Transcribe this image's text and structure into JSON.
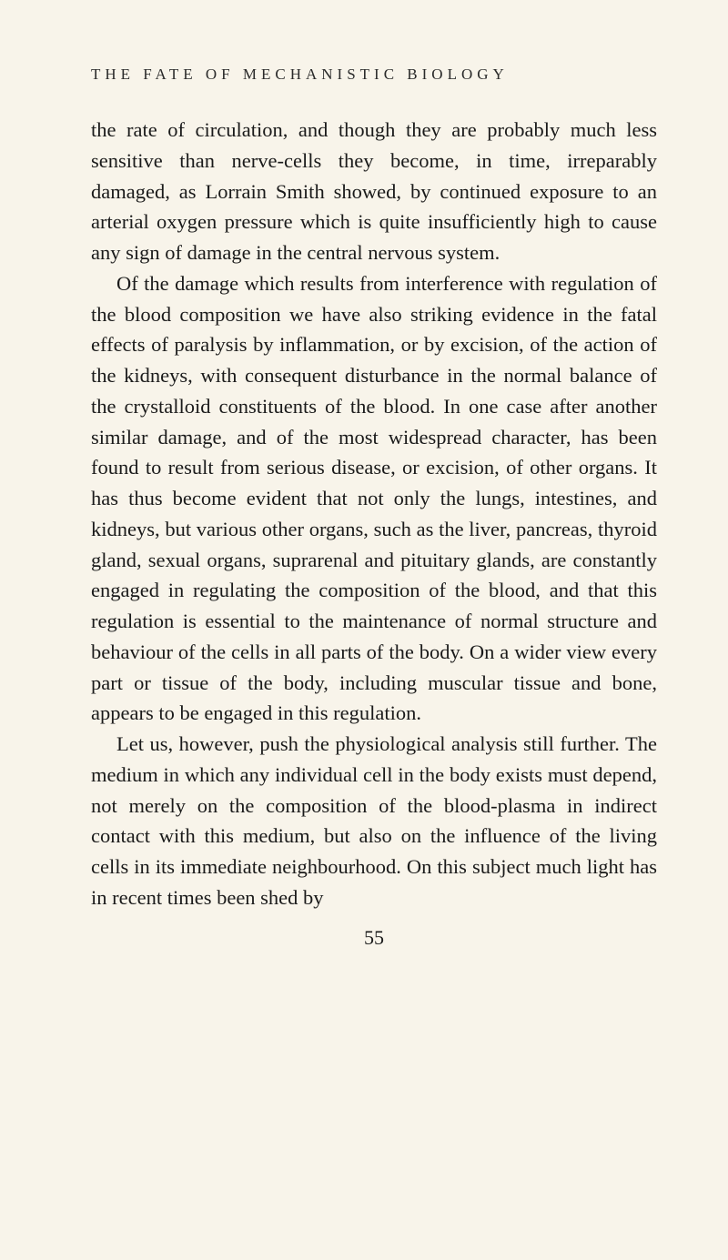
{
  "header": "THE FATE OF MECHANISTIC BIOLOGY",
  "paragraphs": [
    {
      "text": "the rate of circulation, and though they are probably much less sensitive than nerve-cells they become, in time, irreparably damaged, as Lorrain Smith showed, by continued exposure to an arterial oxygen pressure which is quite insufficiently high to cause any sign of damage in the central nervous system.",
      "indent": false
    },
    {
      "text": "Of the damage which results from interference with regulation of the blood composition we have also striking evidence in the fatal effects of paralysis by inflammation, or by excision, of the action of the kidneys, with consequent disturbance in the normal balance of the crystalloid constituents of the blood. In one case after another similar damage, and of the most widespread character, has been found to result from serious disease, or excision, of other organs. It has thus become evident that not only the lungs, intestines, and kidneys, but various other organs, such as the liver, pancreas, thyroid gland, sexual organs, suprarenal and pituitary glands, are constantly engaged in regulating the composition of the blood, and that this regulation is essential to the maintenance of normal structure and behaviour of the cells in all parts of the body. On a wider view every part or tissue of the body, including muscular tissue and bone, appears to be engaged in this regulation.",
      "indent": true
    },
    {
      "text": "Let us, however, push the physiological analysis still further. The medium in which any individual cell in the body exists must depend, not merely on the composition of the blood-plasma in indirect contact with this medium, but also on the influence of the living cells in its immediate neighbourhood. On this subject much light has in recent times been shed by",
      "indent": true
    }
  ],
  "page_number": "55",
  "colors": {
    "background": "#f8f4ea",
    "text": "#1a1a1a",
    "header_text": "#2a2a2a"
  },
  "typography": {
    "header_fontsize": 17,
    "header_letterspacing": 5,
    "body_fontsize": 22.5,
    "body_lineheight": 1.5,
    "pagenum_fontsize": 22,
    "font_family": "Georgia, Times New Roman, serif"
  }
}
